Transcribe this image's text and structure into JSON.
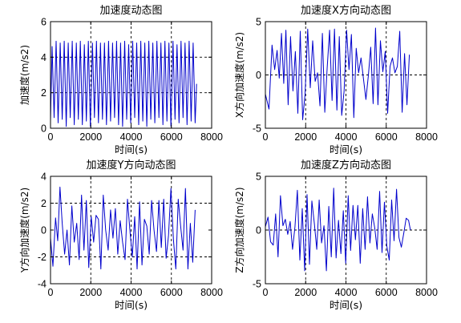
{
  "chart_data": [
    {
      "type": "line",
      "title": "加速度动态图",
      "xlabel": "时间(s)",
      "ylabel": "加速度(m/s2)",
      "xlim": [
        0,
        8000
      ],
      "ylim": [
        0,
        6
      ],
      "xticks": [
        "0",
        "2000",
        "4000",
        "6000",
        "8000"
      ],
      "yticks": [
        "0",
        "2",
        "4",
        "6"
      ],
      "grid": "dashed lines at x=2000,4000,6000 and y=2,4",
      "line_color": "#0000cc",
      "series": [
        {
          "x": [
            0,
            80,
            180,
            280,
            380,
            480,
            580,
            680,
            780,
            880,
            980,
            1080,
            1180,
            1280,
            1380,
            1480,
            1580,
            1680,
            1780,
            1880,
            1980,
            2080,
            2180,
            2280,
            2380,
            2480,
            2580,
            2680,
            2780,
            2880,
            2980,
            3080,
            3180,
            3280,
            3380,
            3480,
            3580,
            3680,
            3780,
            3880,
            3980,
            4080,
            4180,
            4280,
            4380,
            4480,
            4580,
            4680,
            4780,
            4880,
            4980,
            5080,
            5180,
            5280,
            5380,
            5480,
            5580,
            5680,
            5780,
            5880,
            5980,
            6080,
            6180,
            6280,
            6380,
            6480,
            6580,
            6680,
            6780,
            6880,
            6980,
            7080,
            7180,
            7250
          ],
          "y": [
            0.4,
            4.6,
            0.6,
            4.9,
            0.3,
            4.8,
            0.5,
            4.9,
            0.1,
            4.8,
            0.6,
            4.9,
            0.2,
            4.8,
            0.5,
            4.9,
            0.2,
            4.7,
            0.4,
            4.9,
            0.1,
            4.8,
            0.6,
            4.9,
            0.3,
            4.8,
            0.5,
            4.8,
            0.2,
            4.9,
            0.4,
            4.8,
            0.6,
            4.9,
            0.2,
            4.8,
            0.1,
            4.9,
            0.5,
            4.7,
            0.3,
            4.9,
            0.6,
            4.8,
            0.2,
            4.9,
            0.4,
            4.8,
            0.1,
            4.9,
            0.5,
            4.8,
            0.3,
            4.9,
            0.6,
            4.8,
            0.2,
            4.9,
            0.4,
            4.8,
            0.1,
            4.9,
            0.5,
            4.7,
            0.3,
            4.9,
            0.6,
            4.8,
            0.2,
            4.9,
            0.4,
            4.8,
            0.3,
            2.5
          ]
        }
      ]
    },
    {
      "type": "line",
      "title": "加速度X方向动态图",
      "xlabel": "时间(s)",
      "ylabel": "X方向加速度(m/s2)",
      "xlim": [
        0,
        8000
      ],
      "ylim": [
        -5,
        5
      ],
      "xticks": [
        "0",
        "2000",
        "4000",
        "6000",
        "8000"
      ],
      "yticks": [
        "-5",
        "0",
        "5"
      ],
      "grid": "dashed lines at x=2000,4000,6000 and y=0",
      "line_color": "#0000cc",
      "series": [
        {
          "x": [
            0,
            180,
            330,
            460,
            580,
            690,
            800,
            910,
            1020,
            1130,
            1250,
            1370,
            1490,
            1610,
            1730,
            1850,
            1970,
            2100,
            2230,
            2350,
            2470,
            2590,
            2710,
            2830,
            2950,
            3070,
            3190,
            3310,
            3430,
            3550,
            3670,
            3790,
            3910,
            4030,
            4150,
            4270,
            4390,
            4510,
            4630,
            4750,
            4870,
            4990,
            5110,
            5230,
            5350,
            5470,
            5590,
            5710,
            5830,
            5950,
            6070,
            6190,
            6310,
            6430,
            6550,
            6670,
            6790,
            6910,
            7030,
            7150
          ],
          "y": [
            -1.8,
            -3.2,
            2.8,
            0.5,
            2.3,
            -0.3,
            3.9,
            -0.8,
            4.2,
            -2.8,
            3.6,
            -1.5,
            2.2,
            -3.6,
            4.1,
            -4.2,
            -1.8,
            4.3,
            -1.2,
            3.2,
            -0.6,
            0.2,
            -2.9,
            3.9,
            -3.5,
            0.7,
            4.2,
            -2.4,
            4.3,
            -3.3,
            3.6,
            -3.8,
            -1.5,
            4.2,
            0.5,
            3.8,
            -4.0,
            2.5,
            0.2,
            1.6,
            -0.4,
            -2.3,
            -0.1,
            2.6,
            -2.7,
            4.4,
            -2.8,
            3.2,
            0.3,
            2.2,
            -3.6,
            0.8,
            1.6,
            0.2,
            0.8,
            4.1,
            -3.5,
            2.0,
            -2.8,
            1.9
          ]
        }
      ]
    },
    {
      "type": "line",
      "title": "加速度Y方向动态图",
      "xlabel": "时间(s)",
      "ylabel": "Y方向加速度(m/s2)",
      "xlim": [
        0,
        8000
      ],
      "ylim": [
        -4,
        4
      ],
      "xticks": [
        "0",
        "2000",
        "4000",
        "6000",
        "8000"
      ],
      "yticks": [
        "-4",
        "-2",
        "0",
        "2",
        "4"
      ],
      "grid": "dashed lines at x=2000,4000,6000 and y=-2,2",
      "line_color": "#0000cc",
      "series": [
        {
          "x": [
            0,
            120,
            250,
            360,
            470,
            580,
            700,
            820,
            940,
            1060,
            1180,
            1300,
            1420,
            1540,
            1660,
            1780,
            1900,
            2020,
            2140,
            2260,
            2380,
            2500,
            2620,
            2740,
            2860,
            2980,
            3100,
            3220,
            3340,
            3460,
            3580,
            3700,
            3820,
            3940,
            4060,
            4180,
            4300,
            4420,
            4540,
            4660,
            4780,
            4900,
            5020,
            5140,
            5260,
            5380,
            5500,
            5620,
            5740,
            5860,
            5980,
            6100,
            6220,
            6340,
            6460,
            6580,
            6700,
            6820,
            6940,
            7060,
            7180
          ],
          "y": [
            -0.6,
            -2.7,
            0.9,
            -0.8,
            3.2,
            0.5,
            -1.8,
            0.0,
            -2.6,
            1.8,
            -0.9,
            0.5,
            -2.2,
            2.6,
            -1.5,
            2.2,
            -2.8,
            1.0,
            -0.9,
            1.1,
            0.8,
            -2.9,
            2.6,
            0.0,
            -1.5,
            1.5,
            -0.6,
            1.6,
            -1.8,
            0.7,
            -0.9,
            -2.2,
            2.3,
            0.0,
            -2.0,
            1.0,
            -2.9,
            2.1,
            -2.6,
            0.8,
            0.3,
            -1.8,
            2.2,
            0.0,
            -1.6,
            2.2,
            -1.3,
            2.3,
            -2.1,
            -0.4,
            3.1,
            -0.7,
            -2.9,
            2.3,
            0.3,
            -1.5,
            3.1,
            -2.9,
            0.5,
            -2.4,
            1.5
          ]
        }
      ]
    },
    {
      "type": "line",
      "title": "加速度Z方向动态图",
      "xlabel": "时间(s)",
      "ylabel": "Z方向加速度(m/s2)",
      "xlim": [
        0,
        8000
      ],
      "ylim": [
        -5,
        5
      ],
      "xticks": [
        "0",
        "2000",
        "4000",
        "6000",
        "8000"
      ],
      "yticks": [
        "-5",
        "0",
        "5"
      ],
      "grid": "dashed lines at x=2000,4000,6000 and y=0",
      "line_color": "#0000cc",
      "series": [
        {
          "x": [
            0,
            130,
            260,
            390,
            510,
            630,
            750,
            870,
            990,
            1110,
            1230,
            1350,
            1470,
            1590,
            1710,
            1830,
            1950,
            2070,
            2190,
            2310,
            2430,
            2550,
            2670,
            2790,
            2910,
            3030,
            3150,
            3270,
            3390,
            3510,
            3630,
            3750,
            3870,
            3990,
            4110,
            4230,
            4350,
            4470,
            4590,
            4710,
            4830,
            4950,
            5070,
            5190,
            5310,
            5430,
            5550,
            5670,
            5790,
            5910,
            6030,
            6150,
            6270,
            6390,
            6510,
            6630,
            6750,
            6870,
            6990,
            7110,
            7200
          ],
          "y": [
            0.3,
            1.2,
            -1.1,
            -1.4,
            1.5,
            -2.5,
            3.2,
            0.4,
            1.0,
            -0.4,
            0.8,
            -1.8,
            0.3,
            3.7,
            -2.8,
            2.0,
            -3.8,
            3.3,
            -3.2,
            2.7,
            0.6,
            -1.8,
            2.8,
            -1.2,
            0.4,
            -3.8,
            2.2,
            -2.5,
            3.9,
            -2.6,
            0.9,
            -2.2,
            1.8,
            -3.1,
            3.2,
            -1.9,
            2.3,
            -0.9,
            2.3,
            -3.1,
            2.0,
            -1.8,
            3.1,
            -1.2,
            1.5,
            0.2,
            -1.8,
            3.6,
            -2.1,
            2.6,
            -1.5,
            -2.8,
            2.8,
            -1.0,
            3.8,
            -0.7,
            -1.6,
            -0.3,
            1.1,
            0.9,
            0.0
          ]
        }
      ]
    }
  ]
}
